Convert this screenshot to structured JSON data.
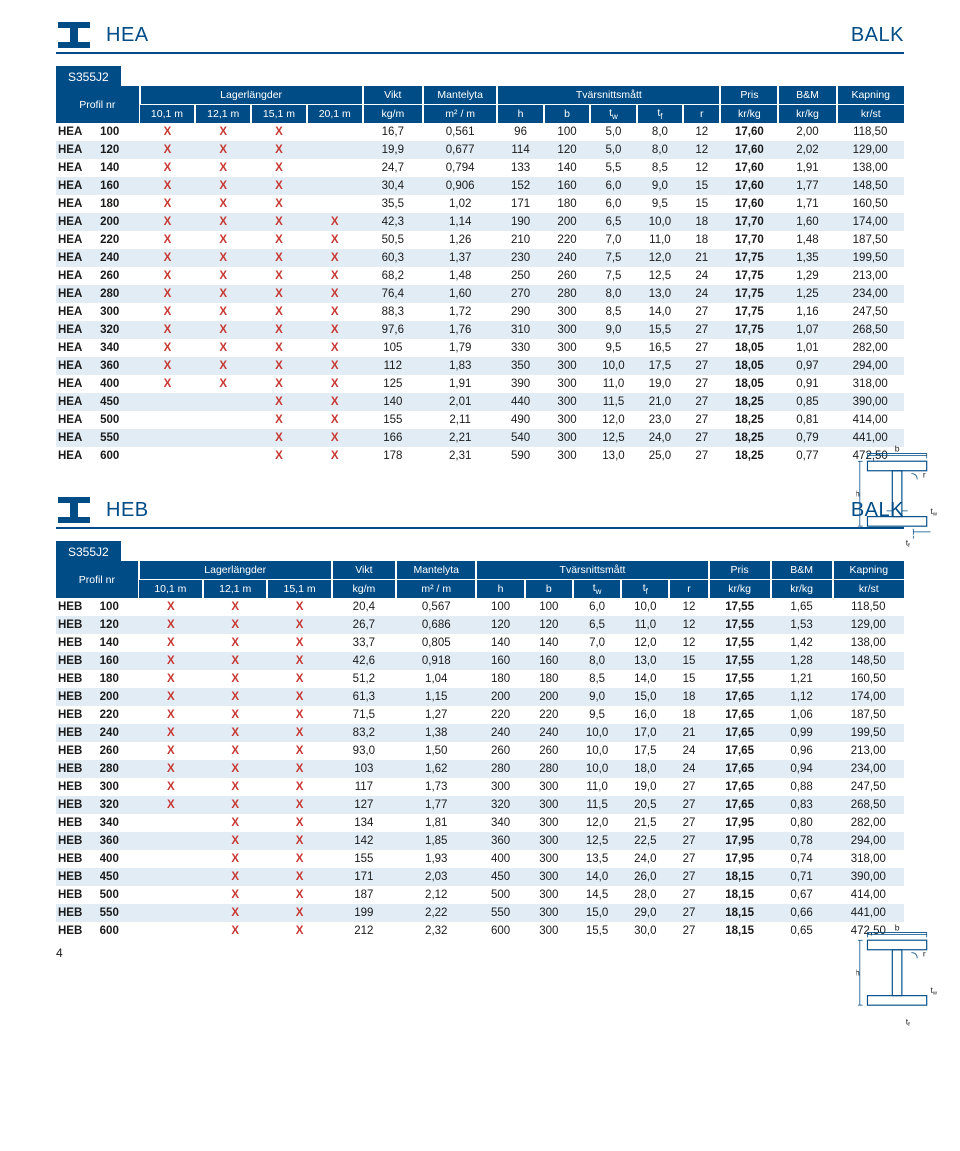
{
  "page_number": "4",
  "colors": {
    "brand": "#004c86",
    "row_alt": "#e2ecf5",
    "x_color": "#c73832"
  },
  "beam_labels": {
    "b": "b",
    "r": "r",
    "h": "h",
    "tw": "t",
    "tw_sub": "w",
    "tf": "t",
    "tf_sub": "f"
  },
  "hea": {
    "title_left": "HEA",
    "title_right": "BALK",
    "grade": "S355J2",
    "headers": {
      "profil": "Profil nr",
      "lager": "Lagerlängder",
      "lager_cols": [
        "10,1 m",
        "12,1 m",
        "15,1 m",
        "20,1 m"
      ],
      "vikt": "Vikt",
      "vikt_u": "kg/m",
      "mantel": "Mantelyta",
      "mantel_u": "m² / m",
      "tvar": "Tvärsnittsmått",
      "tvar_cols": [
        "h",
        "b",
        "t",
        "t",
        "r"
      ],
      "pris": "Pris",
      "pris_u": "kr/kg",
      "bm": "B&M",
      "bm_u": "kr/kg",
      "kap": "Kapning",
      "kap_u": "kr/st"
    },
    "rows": [
      {
        "n": "HEA",
        "s": "100",
        "l": [
          "X",
          "X",
          "X",
          ""
        ],
        "v": "16,7",
        "m": "0,561",
        "t": [
          "96",
          "100",
          "5,0",
          "8,0",
          "12"
        ],
        "p": "17,60",
        "b": "2,00",
        "k": "118,50"
      },
      {
        "n": "HEA",
        "s": "120",
        "l": [
          "X",
          "X",
          "X",
          ""
        ],
        "v": "19,9",
        "m": "0,677",
        "t": [
          "114",
          "120",
          "5,0",
          "8,0",
          "12"
        ],
        "p": "17,60",
        "b": "2,02",
        "k": "129,00"
      },
      {
        "n": "HEA",
        "s": "140",
        "l": [
          "X",
          "X",
          "X",
          ""
        ],
        "v": "24,7",
        "m": "0,794",
        "t": [
          "133",
          "140",
          "5,5",
          "8,5",
          "12"
        ],
        "p": "17,60",
        "b": "1,91",
        "k": "138,00"
      },
      {
        "n": "HEA",
        "s": "160",
        "l": [
          "X",
          "X",
          "X",
          ""
        ],
        "v": "30,4",
        "m": "0,906",
        "t": [
          "152",
          "160",
          "6,0",
          "9,0",
          "15"
        ],
        "p": "17,60",
        "b": "1,77",
        "k": "148,50"
      },
      {
        "n": "HEA",
        "s": "180",
        "l": [
          "X",
          "X",
          "X",
          ""
        ],
        "v": "35,5",
        "m": "1,02",
        "t": [
          "171",
          "180",
          "6,0",
          "9,5",
          "15"
        ],
        "p": "17,60",
        "b": "1,71",
        "k": "160,50"
      },
      {
        "n": "HEA",
        "s": "200",
        "l": [
          "X",
          "X",
          "X",
          "X"
        ],
        "v": "42,3",
        "m": "1,14",
        "t": [
          "190",
          "200",
          "6,5",
          "10,0",
          "18"
        ],
        "p": "17,70",
        "b": "1,60",
        "k": "174,00"
      },
      {
        "n": "HEA",
        "s": "220",
        "l": [
          "X",
          "X",
          "X",
          "X"
        ],
        "v": "50,5",
        "m": "1,26",
        "t": [
          "210",
          "220",
          "7,0",
          "11,0",
          "18"
        ],
        "p": "17,70",
        "b": "1,48",
        "k": "187,50"
      },
      {
        "n": "HEA",
        "s": "240",
        "l": [
          "X",
          "X",
          "X",
          "X"
        ],
        "v": "60,3",
        "m": "1,37",
        "t": [
          "230",
          "240",
          "7,5",
          "12,0",
          "21"
        ],
        "p": "17,75",
        "b": "1,35",
        "k": "199,50"
      },
      {
        "n": "HEA",
        "s": "260",
        "l": [
          "X",
          "X",
          "X",
          "X"
        ],
        "v": "68,2",
        "m": "1,48",
        "t": [
          "250",
          "260",
          "7,5",
          "12,5",
          "24"
        ],
        "p": "17,75",
        "b": "1,29",
        "k": "213,00"
      },
      {
        "n": "HEA",
        "s": "280",
        "l": [
          "X",
          "X",
          "X",
          "X"
        ],
        "v": "76,4",
        "m": "1,60",
        "t": [
          "270",
          "280",
          "8,0",
          "13,0",
          "24"
        ],
        "p": "17,75",
        "b": "1,25",
        "k": "234,00"
      },
      {
        "n": "HEA",
        "s": "300",
        "l": [
          "X",
          "X",
          "X",
          "X"
        ],
        "v": "88,3",
        "m": "1,72",
        "t": [
          "290",
          "300",
          "8,5",
          "14,0",
          "27"
        ],
        "p": "17,75",
        "b": "1,16",
        "k": "247,50"
      },
      {
        "n": "HEA",
        "s": "320",
        "l": [
          "X",
          "X",
          "X",
          "X"
        ],
        "v": "97,6",
        "m": "1,76",
        "t": [
          "310",
          "300",
          "9,0",
          "15,5",
          "27"
        ],
        "p": "17,75",
        "b": "1,07",
        "k": "268,50"
      },
      {
        "n": "HEA",
        "s": "340",
        "l": [
          "X",
          "X",
          "X",
          "X"
        ],
        "v": "105",
        "m": "1,79",
        "t": [
          "330",
          "300",
          "9,5",
          "16,5",
          "27"
        ],
        "p": "18,05",
        "b": "1,01",
        "k": "282,00"
      },
      {
        "n": "HEA",
        "s": "360",
        "l": [
          "X",
          "X",
          "X",
          "X"
        ],
        "v": "112",
        "m": "1,83",
        "t": [
          "350",
          "300",
          "10,0",
          "17,5",
          "27"
        ],
        "p": "18,05",
        "b": "0,97",
        "k": "294,00"
      },
      {
        "n": "HEA",
        "s": "400",
        "l": [
          "X",
          "X",
          "X",
          "X"
        ],
        "v": "125",
        "m": "1,91",
        "t": [
          "390",
          "300",
          "11,0",
          "19,0",
          "27"
        ],
        "p": "18,05",
        "b": "0,91",
        "k": "318,00"
      },
      {
        "n": "HEA",
        "s": "450",
        "l": [
          "",
          "",
          "X",
          "X"
        ],
        "v": "140",
        "m": "2,01",
        "t": [
          "440",
          "300",
          "11,5",
          "21,0",
          "27"
        ],
        "p": "18,25",
        "b": "0,85",
        "k": "390,00"
      },
      {
        "n": "HEA",
        "s": "500",
        "l": [
          "",
          "",
          "X",
          "X"
        ],
        "v": "155",
        "m": "2,11",
        "t": [
          "490",
          "300",
          "12,0",
          "23,0",
          "27"
        ],
        "p": "18,25",
        "b": "0,81",
        "k": "414,00"
      },
      {
        "n": "HEA",
        "s": "550",
        "l": [
          "",
          "",
          "X",
          "X"
        ],
        "v": "166",
        "m": "2,21",
        "t": [
          "540",
          "300",
          "12,5",
          "24,0",
          "27"
        ],
        "p": "18,25",
        "b": "0,79",
        "k": "441,00"
      },
      {
        "n": "HEA",
        "s": "600",
        "l": [
          "",
          "",
          "X",
          "X"
        ],
        "v": "178",
        "m": "2,31",
        "t": [
          "590",
          "300",
          "13,0",
          "25,0",
          "27"
        ],
        "p": "18,25",
        "b": "0,77",
        "k": "472,50"
      }
    ]
  },
  "heb": {
    "title_left": "HEB",
    "title_right": "BALK",
    "grade": "S355J2",
    "headers": {
      "profil": "Profil nr",
      "lager": "Lagerlängder",
      "lager_cols": [
        "10,1 m",
        "12,1 m",
        "15,1 m"
      ],
      "vikt": "Vikt",
      "vikt_u": "kg/m",
      "mantel": "Mantelyta",
      "mantel_u": "m² / m",
      "tvar": "Tvärsnittsmått",
      "tvar_cols": [
        "h",
        "b",
        "t",
        "t",
        "r"
      ],
      "pris": "Pris",
      "pris_u": "kr/kg",
      "bm": "B&M",
      "bm_u": "kr/kg",
      "kap": "Kapning",
      "kap_u": "kr/st"
    },
    "rows": [
      {
        "n": "HEB",
        "s": "100",
        "l": [
          "X",
          "X",
          "X"
        ],
        "v": "20,4",
        "m": "0,567",
        "t": [
          "100",
          "100",
          "6,0",
          "10,0",
          "12"
        ],
        "p": "17,55",
        "b": "1,65",
        "k": "118,50"
      },
      {
        "n": "HEB",
        "s": "120",
        "l": [
          "X",
          "X",
          "X"
        ],
        "v": "26,7",
        "m": "0,686",
        "t": [
          "120",
          "120",
          "6,5",
          "11,0",
          "12"
        ],
        "p": "17,55",
        "b": "1,53",
        "k": "129,00"
      },
      {
        "n": "HEB",
        "s": "140",
        "l": [
          "X",
          "X",
          "X"
        ],
        "v": "33,7",
        "m": "0,805",
        "t": [
          "140",
          "140",
          "7,0",
          "12,0",
          "12"
        ],
        "p": "17,55",
        "b": "1,42",
        "k": "138,00"
      },
      {
        "n": "HEB",
        "s": "160",
        "l": [
          "X",
          "X",
          "X"
        ],
        "v": "42,6",
        "m": "0,918",
        "t": [
          "160",
          "160",
          "8,0",
          "13,0",
          "15"
        ],
        "p": "17,55",
        "b": "1,28",
        "k": "148,50"
      },
      {
        "n": "HEB",
        "s": "180",
        "l": [
          "X",
          "X",
          "X"
        ],
        "v": "51,2",
        "m": "1,04",
        "t": [
          "180",
          "180",
          "8,5",
          "14,0",
          "15"
        ],
        "p": "17,55",
        "b": "1,21",
        "k": "160,50"
      },
      {
        "n": "HEB",
        "s": "200",
        "l": [
          "X",
          "X",
          "X"
        ],
        "v": "61,3",
        "m": "1,15",
        "t": [
          "200",
          "200",
          "9,0",
          "15,0",
          "18"
        ],
        "p": "17,65",
        "b": "1,12",
        "k": "174,00"
      },
      {
        "n": "HEB",
        "s": "220",
        "l": [
          "X",
          "X",
          "X"
        ],
        "v": "71,5",
        "m": "1,27",
        "t": [
          "220",
          "220",
          "9,5",
          "16,0",
          "18"
        ],
        "p": "17,65",
        "b": "1,06",
        "k": "187,50"
      },
      {
        "n": "HEB",
        "s": "240",
        "l": [
          "X",
          "X",
          "X"
        ],
        "v": "83,2",
        "m": "1,38",
        "t": [
          "240",
          "240",
          "10,0",
          "17,0",
          "21"
        ],
        "p": "17,65",
        "b": "0,99",
        "k": "199,50"
      },
      {
        "n": "HEB",
        "s": "260",
        "l": [
          "X",
          "X",
          "X"
        ],
        "v": "93,0",
        "m": "1,50",
        "t": [
          "260",
          "260",
          "10,0",
          "17,5",
          "24"
        ],
        "p": "17,65",
        "b": "0,96",
        "k": "213,00"
      },
      {
        "n": "HEB",
        "s": "280",
        "l": [
          "X",
          "X",
          "X"
        ],
        "v": "103",
        "m": "1,62",
        "t": [
          "280",
          "280",
          "10,0",
          "18,0",
          "24"
        ],
        "p": "17,65",
        "b": "0,94",
        "k": "234,00"
      },
      {
        "n": "HEB",
        "s": "300",
        "l": [
          "X",
          "X",
          "X"
        ],
        "v": "117",
        "m": "1,73",
        "t": [
          "300",
          "300",
          "11,0",
          "19,0",
          "27"
        ],
        "p": "17,65",
        "b": "0,88",
        "k": "247,50"
      },
      {
        "n": "HEB",
        "s": "320",
        "l": [
          "X",
          "X",
          "X"
        ],
        "v": "127",
        "m": "1,77",
        "t": [
          "320",
          "300",
          "11,5",
          "20,5",
          "27"
        ],
        "p": "17,65",
        "b": "0,83",
        "k": "268,50"
      },
      {
        "n": "HEB",
        "s": "340",
        "l": [
          "",
          "X",
          "X"
        ],
        "v": "134",
        "m": "1,81",
        "t": [
          "340",
          "300",
          "12,0",
          "21,5",
          "27"
        ],
        "p": "17,95",
        "b": "0,80",
        "k": "282,00"
      },
      {
        "n": "HEB",
        "s": "360",
        "l": [
          "",
          "X",
          "X"
        ],
        "v": "142",
        "m": "1,85",
        "t": [
          "360",
          "300",
          "12,5",
          "22,5",
          "27"
        ],
        "p": "17,95",
        "b": "0,78",
        "k": "294,00"
      },
      {
        "n": "HEB",
        "s": "400",
        "l": [
          "",
          "X",
          "X"
        ],
        "v": "155",
        "m": "1,93",
        "t": [
          "400",
          "300",
          "13,5",
          "24,0",
          "27"
        ],
        "p": "17,95",
        "b": "0,74",
        "k": "318,00"
      },
      {
        "n": "HEB",
        "s": "450",
        "l": [
          "",
          "X",
          "X"
        ],
        "v": "171",
        "m": "2,03",
        "t": [
          "450",
          "300",
          "14,0",
          "26,0",
          "27"
        ],
        "p": "18,15",
        "b": "0,71",
        "k": "390,00"
      },
      {
        "n": "HEB",
        "s": "500",
        "l": [
          "",
          "X",
          "X"
        ],
        "v": "187",
        "m": "2,12",
        "t": [
          "500",
          "300",
          "14,5",
          "28,0",
          "27"
        ],
        "p": "18,15",
        "b": "0,67",
        "k": "414,00"
      },
      {
        "n": "HEB",
        "s": "550",
        "l": [
          "",
          "X",
          "X"
        ],
        "v": "199",
        "m": "2,22",
        "t": [
          "550",
          "300",
          "15,0",
          "29,0",
          "27"
        ],
        "p": "18,15",
        "b": "0,66",
        "k": "441,00"
      },
      {
        "n": "HEB",
        "s": "600",
        "l": [
          "",
          "X",
          "X"
        ],
        "v": "212",
        "m": "2,32",
        "t": [
          "600",
          "300",
          "15,5",
          "30,0",
          "27"
        ],
        "p": "18,15",
        "b": "0,65",
        "k": "472,50"
      }
    ]
  }
}
